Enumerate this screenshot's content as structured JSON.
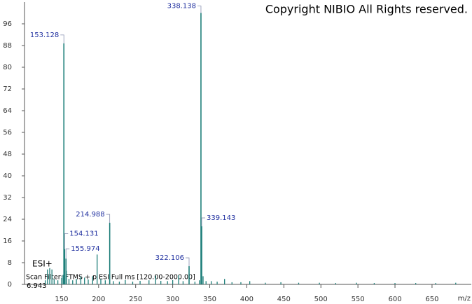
{
  "chart_data": {
    "type": "spectrum",
    "title": "Copyright NIBIO All Rights reserved.",
    "ion_mode": "ESI+",
    "scan_filter": "Scan Filter: FTMS + p ESI Full ms [120.00-2000.00]",
    "retention_time": "6.943",
    "x_label": "m/z",
    "color": "#1f7f7a",
    "label_color": "#1f2f9f",
    "annotations": [
      {
        "x": 153.128,
        "y": 88.8
      },
      {
        "x": 154.131,
        "y": 13
      },
      {
        "x": 155.974,
        "y": 9.5
      },
      {
        "x": 214.988,
        "y": 22.7
      },
      {
        "x": 322.106,
        "y": 6.7
      },
      {
        "x": 338.138,
        "y": 100
      },
      {
        "x": 339.143,
        "y": 21.4
      }
    ],
    "x": [
      128,
      131,
      134,
      137,
      140,
      145,
      150,
      152,
      156.5,
      160,
      165,
      170,
      176,
      181,
      186,
      192,
      198,
      203,
      209,
      220,
      228,
      236,
      246,
      256,
      268,
      277,
      284,
      293,
      300,
      308,
      314,
      330,
      336,
      341,
      345,
      352,
      360,
      370,
      380,
      392,
      404,
      425,
      446,
      470,
      498,
      520,
      548,
      572,
      600,
      628,
      655,
      682
    ],
    "values": [
      1.5,
      5.5,
      6,
      5.5,
      2,
      1.5,
      2.5,
      3.5,
      5,
      2,
      1.5,
      2,
      3,
      2.5,
      1.8,
      3,
      11,
      2,
      1.5,
      1.2,
      1,
      1.6,
      1,
      1.3,
      1.5,
      3.2,
      1.3,
      1.2,
      1.6,
      3.4,
      1.2,
      1,
      1.5,
      3,
      1.2,
      1.2,
      1,
      2,
      0.8,
      0.8,
      1.2,
      0.6,
      0.8,
      0.6,
      0.6,
      0.5,
      0.6,
      0.5,
      0.5,
      0.5,
      0.5,
      0.6
    ],
    "xlim": [
      100,
      703
    ],
    "ylim": [
      0,
      104
    ],
    "xticks": [
      150,
      200,
      250,
      300,
      350,
      400,
      450,
      500,
      550,
      600,
      650
    ],
    "yticks": [
      0,
      8,
      16,
      24,
      32,
      40,
      48,
      56,
      64,
      72,
      80,
      88,
      96
    ]
  }
}
